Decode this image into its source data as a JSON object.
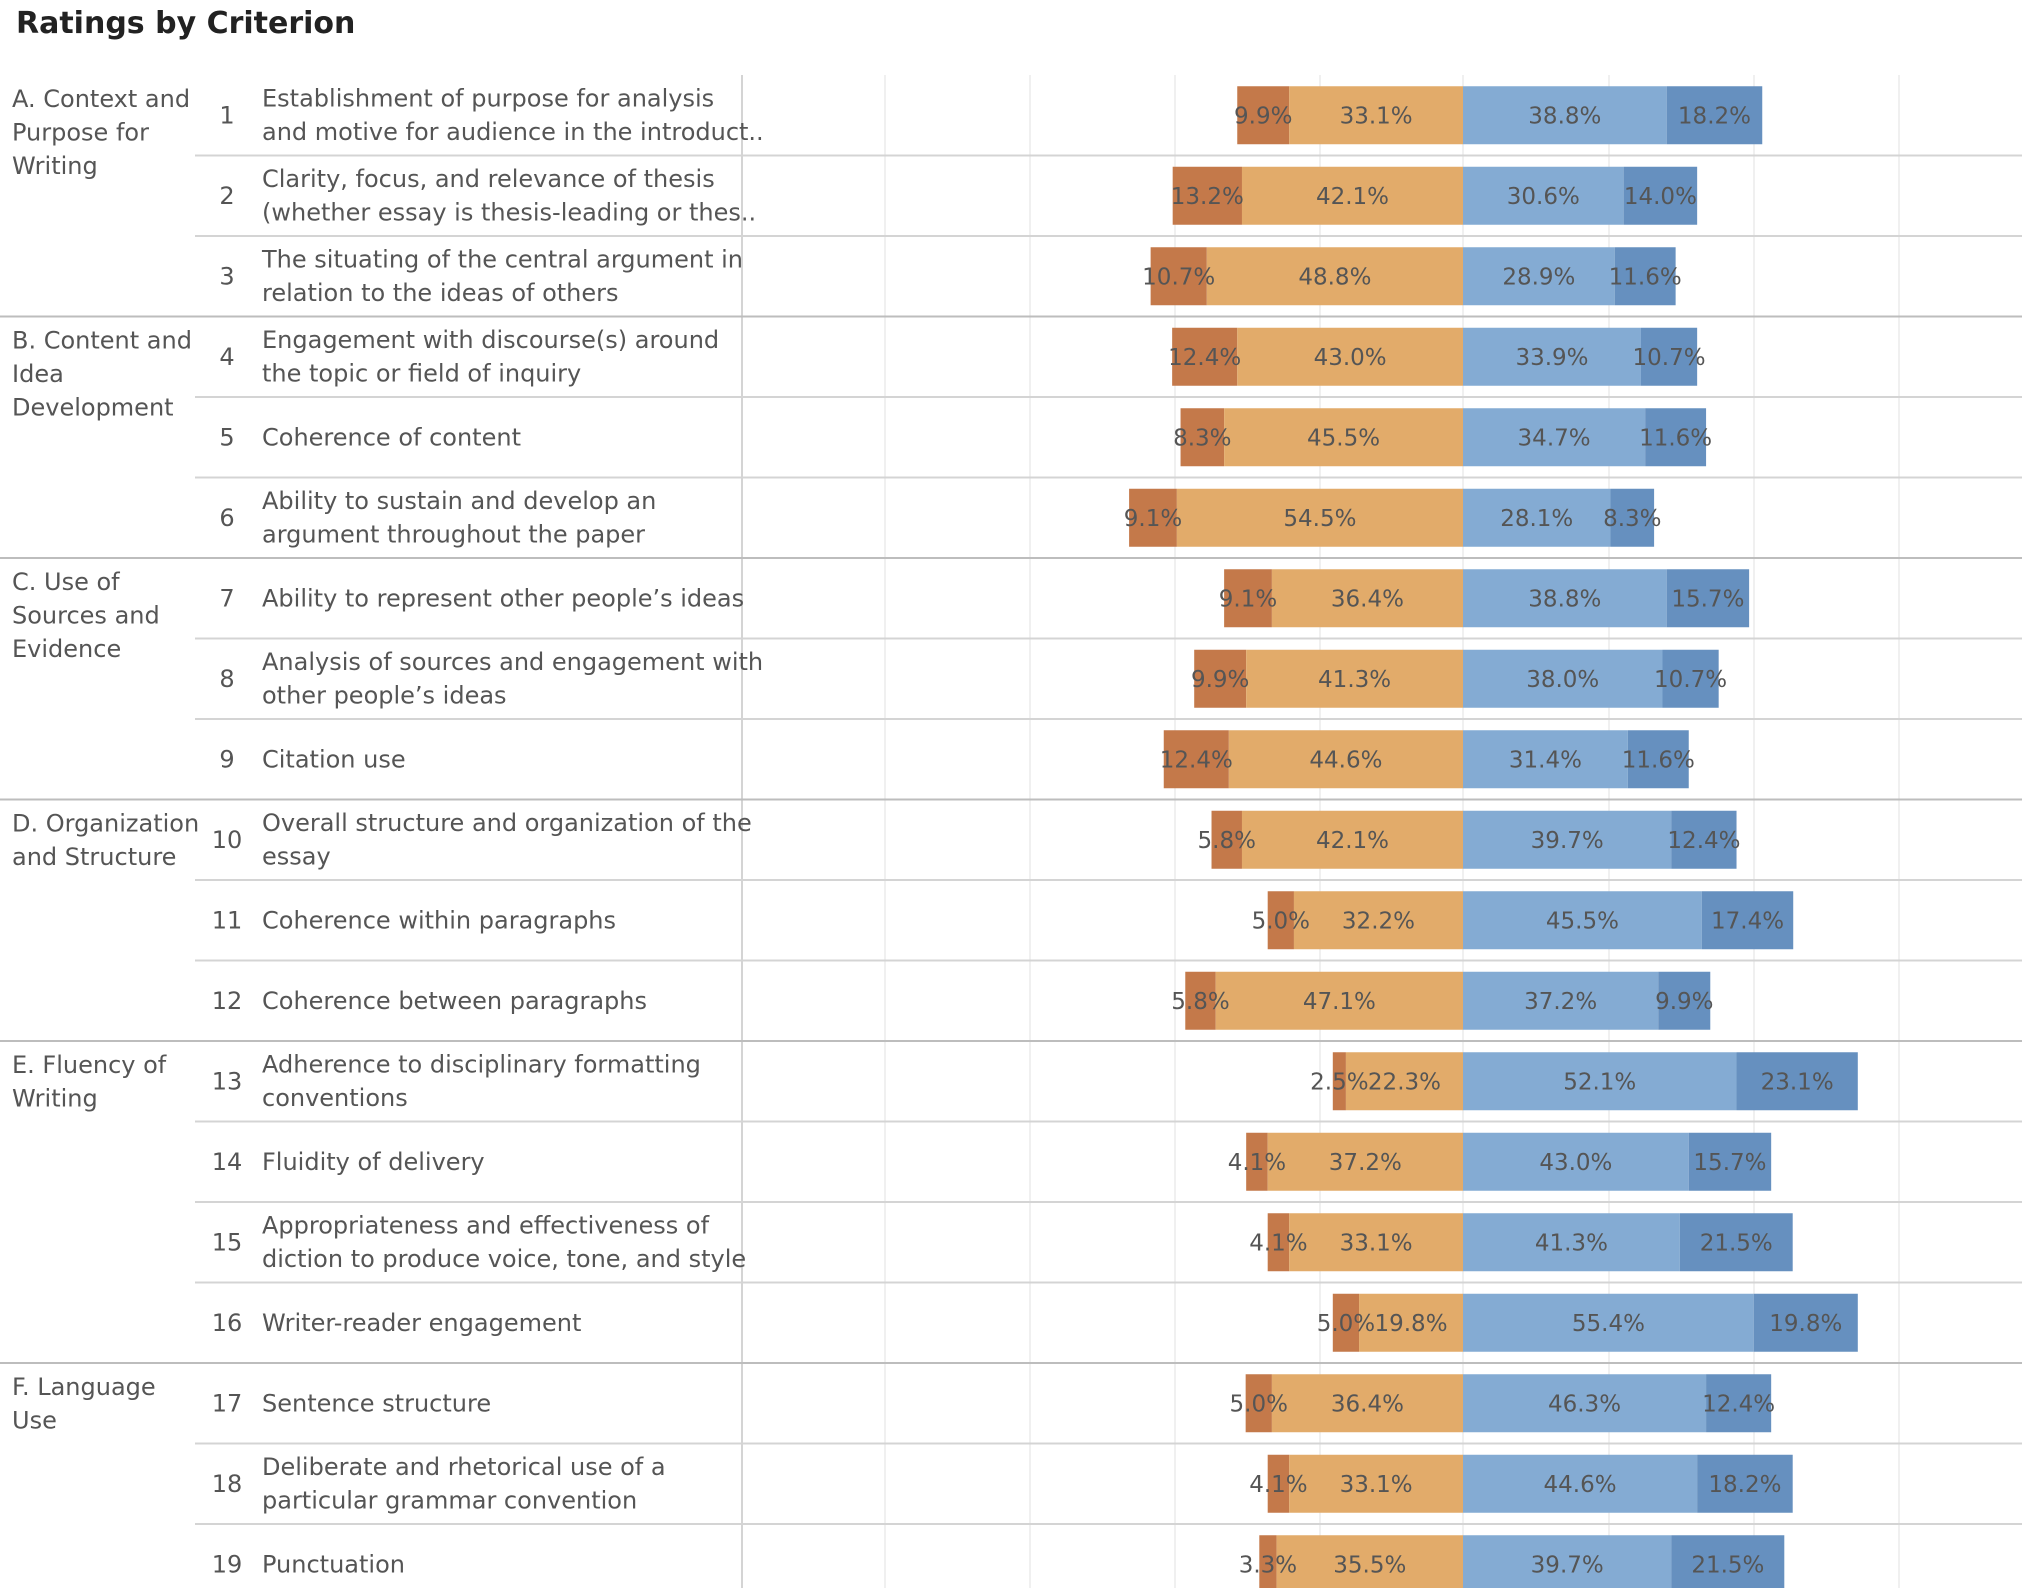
{
  "title": "Ratings by Criterion",
  "colors": {
    "strong_negative": "#c4794a",
    "negative": "#e2ab6a",
    "positive": "#84abd3",
    "strong_positive": "#6690bf",
    "text": "#555555",
    "row_divider": "#d4d4d4",
    "group_divider": "#bdbdbd",
    "grid": "#e6e6e6"
  },
  "chart_data": {
    "type": "bar",
    "subtype": "diverging-stacked-100",
    "title": "Ratings by Criterion",
    "grid": true,
    "legend": "none",
    "groups": [
      {
        "label": "A. Context and Purpose for Writing",
        "rows": [
          1,
          2,
          3
        ]
      },
      {
        "label": "B. Content and Idea Development",
        "rows": [
          4,
          5,
          6
        ]
      },
      {
        "label": "C. Use of Sources and Evidence",
        "rows": [
          7,
          8,
          9
        ]
      },
      {
        "label": "D. Organization and Structure",
        "rows": [
          10,
          11,
          12
        ]
      },
      {
        "label": "E. Fluency of Writing",
        "rows": [
          13,
          14,
          15,
          16
        ]
      },
      {
        "label": "F. Language Use",
        "rows": [
          17,
          18,
          19
        ]
      }
    ],
    "series": [
      {
        "name": "",
        "side": "negative",
        "values": [
          9.9,
          13.2,
          10.7,
          12.4,
          8.3,
          9.1,
          9.1,
          9.9,
          12.4,
          5.8,
          5.0,
          5.8,
          2.5,
          4.1,
          4.1,
          5.0,
          5.0,
          4.1,
          3.3
        ]
      },
      {
        "name": "",
        "side": "negative",
        "values": [
          33.1,
          42.1,
          48.8,
          43.0,
          45.5,
          54.5,
          36.4,
          41.3,
          44.6,
          42.1,
          32.2,
          47.1,
          22.3,
          37.2,
          33.1,
          19.8,
          36.4,
          33.1,
          35.5
        ]
      },
      {
        "name": "",
        "side": "positive",
        "values": [
          38.8,
          30.6,
          28.9,
          33.9,
          34.7,
          28.1,
          38.8,
          38.0,
          31.4,
          39.7,
          45.5,
          37.2,
          52.1,
          43.0,
          41.3,
          55.4,
          46.3,
          44.6,
          39.7
        ]
      },
      {
        "name": "",
        "side": "positive",
        "values": [
          18.2,
          14.0,
          11.6,
          10.7,
          11.6,
          8.3,
          15.7,
          10.7,
          11.6,
          12.4,
          17.4,
          9.9,
          23.1,
          15.7,
          21.5,
          19.8,
          12.4,
          18.2,
          21.5
        ]
      }
    ],
    "rows": [
      {
        "num": "1",
        "lines": [
          "Establishment of purpose for analysis",
          "and motive for audience in the introduct.."
        ],
        "labels": [
          "9.9%",
          "33.1%",
          "38.8%",
          "18.2%"
        ]
      },
      {
        "num": "2",
        "lines": [
          "Clarity, focus, and relevance of thesis",
          "(whether essay is thesis-leading or thes.."
        ],
        "labels": [
          "13.2%",
          "42.1%",
          "30.6%",
          "14.0%"
        ]
      },
      {
        "num": "3",
        "lines": [
          "The situating of the central argument in",
          "relation to the ideas of others"
        ],
        "labels": [
          "10.7%",
          "48.8%",
          "28.9%",
          "11.6%"
        ]
      },
      {
        "num": "4",
        "lines": [
          "Engagement with discourse(s) around",
          "the topic or field of inquiry"
        ],
        "labels": [
          "12.4%",
          "43.0%",
          "33.9%",
          "10.7%"
        ]
      },
      {
        "num": "5",
        "lines": [
          "Coherence of content"
        ],
        "labels": [
          "8.3%",
          "45.5%",
          "34.7%",
          "11.6%"
        ]
      },
      {
        "num": "6",
        "lines": [
          "Ability to sustain and develop an",
          "argument throughout the paper"
        ],
        "labels": [
          "9.1%",
          "54.5%",
          "28.1%",
          "8.3%"
        ]
      },
      {
        "num": "7",
        "lines": [
          "Ability to represent other people’s ideas"
        ],
        "labels": [
          "9.1%",
          "36.4%",
          "38.8%",
          "15.7%"
        ]
      },
      {
        "num": "8",
        "lines": [
          "Analysis of sources and engagement with",
          "other people’s ideas"
        ],
        "labels": [
          "9.9%",
          "41.3%",
          "38.0%",
          "10.7%"
        ]
      },
      {
        "num": "9",
        "lines": [
          "Citation use"
        ],
        "labels": [
          "12.4%",
          "44.6%",
          "31.4%",
          "11.6%"
        ]
      },
      {
        "num": "10",
        "lines": [
          "Overall structure and organization of the",
          "essay"
        ],
        "labels": [
          "5.8%",
          "42.1%",
          "39.7%",
          "12.4%"
        ]
      },
      {
        "num": "11",
        "lines": [
          "Coherence within paragraphs"
        ],
        "labels": [
          "5.0%",
          "32.2%",
          "45.5%",
          "17.4%"
        ]
      },
      {
        "num": "12",
        "lines": [
          "Coherence between paragraphs"
        ],
        "labels": [
          "5.8%",
          "47.1%",
          "37.2%",
          "9.9%"
        ]
      },
      {
        "num": "13",
        "lines": [
          "Adherence to disciplinary formatting",
          "conventions"
        ],
        "labels": [
          "2.5%",
          "22.3%",
          "52.1%",
          "23.1%"
        ]
      },
      {
        "num": "14",
        "lines": [
          "Fluidity of delivery"
        ],
        "labels": [
          "4.1%",
          "37.2%",
          "43.0%",
          "15.7%"
        ]
      },
      {
        "num": "15",
        "lines": [
          "Appropriateness and effectiveness of",
          "diction to produce voice, tone, and style"
        ],
        "labels": [
          "4.1%",
          "33.1%",
          "41.3%",
          "21.5%"
        ]
      },
      {
        "num": "16",
        "lines": [
          "Writer-reader engagement"
        ],
        "labels": [
          "5.0%",
          "19.8%",
          "55.4%",
          "19.8%"
        ]
      },
      {
        "num": "17",
        "lines": [
          "Sentence structure"
        ],
        "labels": [
          "5.0%",
          "36.4%",
          "46.3%",
          "12.4%"
        ]
      },
      {
        "num": "18",
        "lines": [
          "Deliberate and rhetorical use of a",
          "particular grammar convention"
        ],
        "labels": [
          "4.1%",
          "33.1%",
          "44.6%",
          "18.2%"
        ]
      },
      {
        "num": "19",
        "lines": [
          "Punctuation"
        ],
        "labels": [
          "3.3%",
          "35.5%",
          "39.7%",
          "21.5%"
        ]
      }
    ],
    "group_label_lines": [
      [
        "A. Context and",
        "Purpose for",
        "Writing"
      ],
      [
        "B. Content and",
        "Idea",
        "Development"
      ],
      [
        "C. Use of",
        "Sources and",
        "Evidence"
      ],
      [
        "D. Organization",
        "and Structure"
      ],
      [
        "E. Fluency of",
        "Writing"
      ],
      [
        "F. Language",
        "Use"
      ]
    ]
  }
}
